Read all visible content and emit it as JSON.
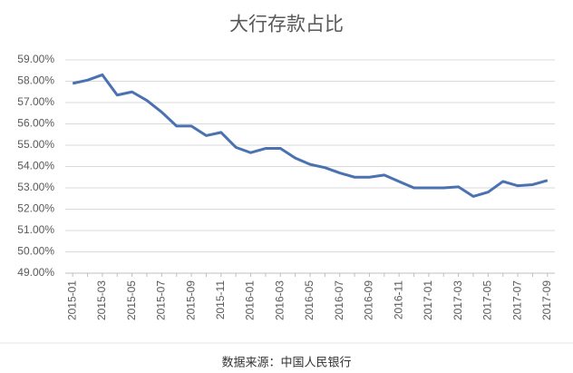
{
  "chart_data": {
    "type": "line",
    "title": "大行存款占比",
    "source": "数据来源：中国人民银行",
    "categories": [
      "2015-01",
      null,
      "2015-03",
      null,
      "2015-05",
      null,
      "2015-07",
      null,
      "2015-09",
      null,
      "2015-11",
      null,
      "2016-01",
      null,
      "2016-03",
      null,
      "2016-05",
      null,
      "2016-07",
      null,
      "2016-09",
      null,
      "2016-11",
      null,
      "2017-01",
      null,
      "2017-03",
      null,
      "2017-05",
      null,
      "2017-07",
      null,
      "2017-09"
    ],
    "series": [
      {
        "color": "#4a72b0",
        "values": [
          57.9,
          58.05,
          58.3,
          57.35,
          57.5,
          57.1,
          56.55,
          55.9,
          55.9,
          55.45,
          55.6,
          54.9,
          54.65,
          54.85,
          54.85,
          54.4,
          54.1,
          53.95,
          53.7,
          53.5,
          53.5,
          53.6,
          53.3,
          53.0,
          53.0,
          53.0,
          53.05,
          52.6,
          52.8,
          53.3,
          53.1,
          53.15,
          53.35
        ]
      }
    ],
    "ylim": [
      49,
      59
    ],
    "yticks": [
      {
        "value": 49,
        "label": "49.00%"
      },
      {
        "value": 50,
        "label": "50.00%"
      },
      {
        "value": 51,
        "label": "51.00%"
      },
      {
        "value": 52,
        "label": "52.00%"
      },
      {
        "value": 53,
        "label": "53.00%"
      },
      {
        "value": 54,
        "label": "54.00%"
      },
      {
        "value": 55,
        "label": "55.00%"
      },
      {
        "value": 56,
        "label": "56.00%"
      },
      {
        "value": 57,
        "label": "57.00%"
      },
      {
        "value": 58,
        "label": "58.00%"
      },
      {
        "value": 59,
        "label": "59.00%"
      }
    ],
    "grid": true
  }
}
